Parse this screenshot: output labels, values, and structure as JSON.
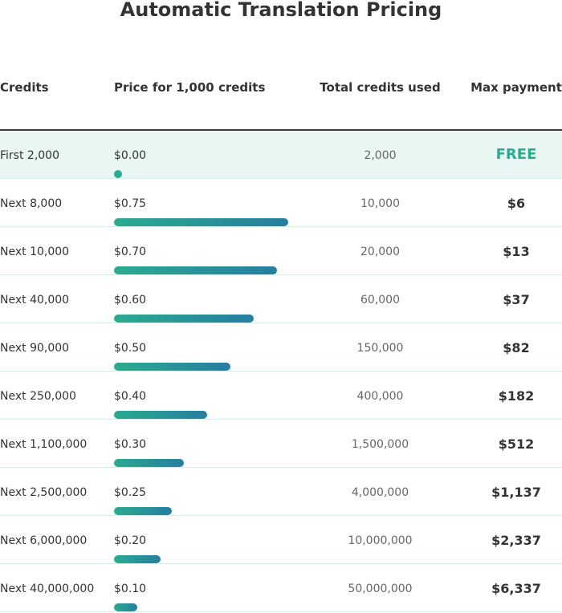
{
  "title": "Automatic Translation Pricing",
  "headers": {
    "credits": "Credits",
    "price": "Price for 1,000 credits",
    "total": "Total credits used",
    "max": "Max payment"
  },
  "colors": {
    "accent": "#2bab90",
    "accent_end": "#267ea0",
    "highlight_row": "#eaf6f3",
    "header_rule": "#3c3c3c",
    "row_divider": "#d5ece8"
  },
  "price_bar_scale_max": 0.75,
  "rows": [
    {
      "credits": "First 2,000",
      "price": "$0.00",
      "price_value": 0.0,
      "total": "2,000",
      "max": "FREE",
      "free": true
    },
    {
      "credits": "Next 8,000",
      "price": "$0.75",
      "price_value": 0.75,
      "total": "10,000",
      "max": "$6"
    },
    {
      "credits": "Next 10,000",
      "price": "$0.70",
      "price_value": 0.7,
      "total": "20,000",
      "max": "$13"
    },
    {
      "credits": "Next 40,000",
      "price": "$0.60",
      "price_value": 0.6,
      "total": "60,000",
      "max": "$37"
    },
    {
      "credits": "Next 90,000",
      "price": "$0.50",
      "price_value": 0.5,
      "total": "150,000",
      "max": "$82"
    },
    {
      "credits": "Next 250,000",
      "price": "$0.40",
      "price_value": 0.4,
      "total": "400,000",
      "max": "$182"
    },
    {
      "credits": "Next 1,100,000",
      "price": "$0.30",
      "price_value": 0.3,
      "total": "1,500,000",
      "max": "$512"
    },
    {
      "credits": "Next 2,500,000",
      "price": "$0.25",
      "price_value": 0.25,
      "total": "4,000,000",
      "max": "$1,137"
    },
    {
      "credits": "Next 6,000,000",
      "price": "$0.20",
      "price_value": 0.2,
      "total": "10,000,000",
      "max": "$2,337"
    },
    {
      "credits": "Next 40,000,000",
      "price": "$0.10",
      "price_value": 0.1,
      "total": "50,000,000",
      "max": "$6,337"
    }
  ]
}
